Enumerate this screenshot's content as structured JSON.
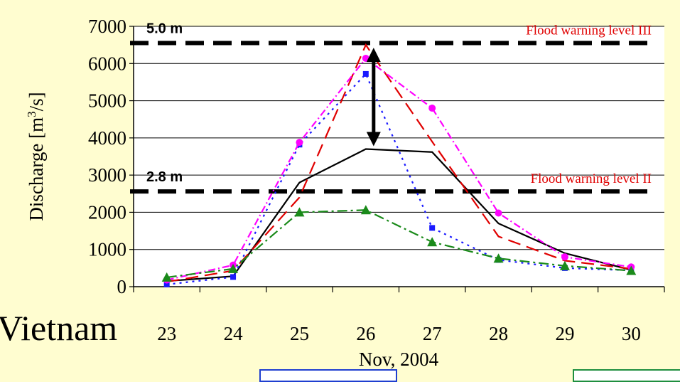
{
  "background_text": "Vietnam",
  "chart_data": {
    "type": "line",
    "title": "",
    "xlabel": "Nov, 2004",
    "ylabel": "Discharge [m3/s]",
    "ylabel_parts": {
      "main": "Discharge [m",
      "sup": "3",
      "tail": "/s]"
    },
    "categories": [
      "23",
      "24",
      "25",
      "26",
      "27",
      "28",
      "29",
      "30"
    ],
    "ylim": [
      0,
      7000
    ],
    "yticks": [
      "0",
      "1000",
      "2000",
      "3000",
      "4000",
      "5000",
      "6000",
      "7000"
    ],
    "grid": true,
    "series": [
      {
        "color": "#000000",
        "dash": "",
        "marker": "none",
        "values": [
          150,
          280,
          2800,
          3700,
          3620,
          1700,
          900,
          450
        ]
      },
      {
        "color": "#1a1aff",
        "dash": "3,6",
        "marker": "square",
        "values": [
          60,
          260,
          3820,
          5720,
          1580,
          720,
          500,
          440
        ]
      },
      {
        "color": "#e00000",
        "dash": "18,9",
        "marker": "none",
        "values": [
          130,
          430,
          2400,
          6500,
          3900,
          1350,
          700,
          480
        ]
      },
      {
        "color": "#ff00ff",
        "dash": "10,4,2,4",
        "marker": "circle",
        "values": [
          180,
          580,
          3880,
          6140,
          4800,
          1980,
          800,
          530
        ]
      },
      {
        "color": "#1a8a1a",
        "dash": "14,5,3,5",
        "marker": "triangle",
        "values": [
          250,
          480,
          2000,
          2060,
          1200,
          760,
          560,
          430
        ]
      }
    ],
    "reference_lines": [
      {
        "value": 6550,
        "gauge_label": "5.0 m",
        "label": "Flood warning level III",
        "label_color": "#e00000"
      },
      {
        "value": 2560,
        "gauge_label": "2.8 m",
        "label": "Flood warning level II",
        "label_color": "#e00000"
      }
    ],
    "annotation_arrow": {
      "x_category": "26",
      "from": 6500,
      "to": 3700
    }
  }
}
